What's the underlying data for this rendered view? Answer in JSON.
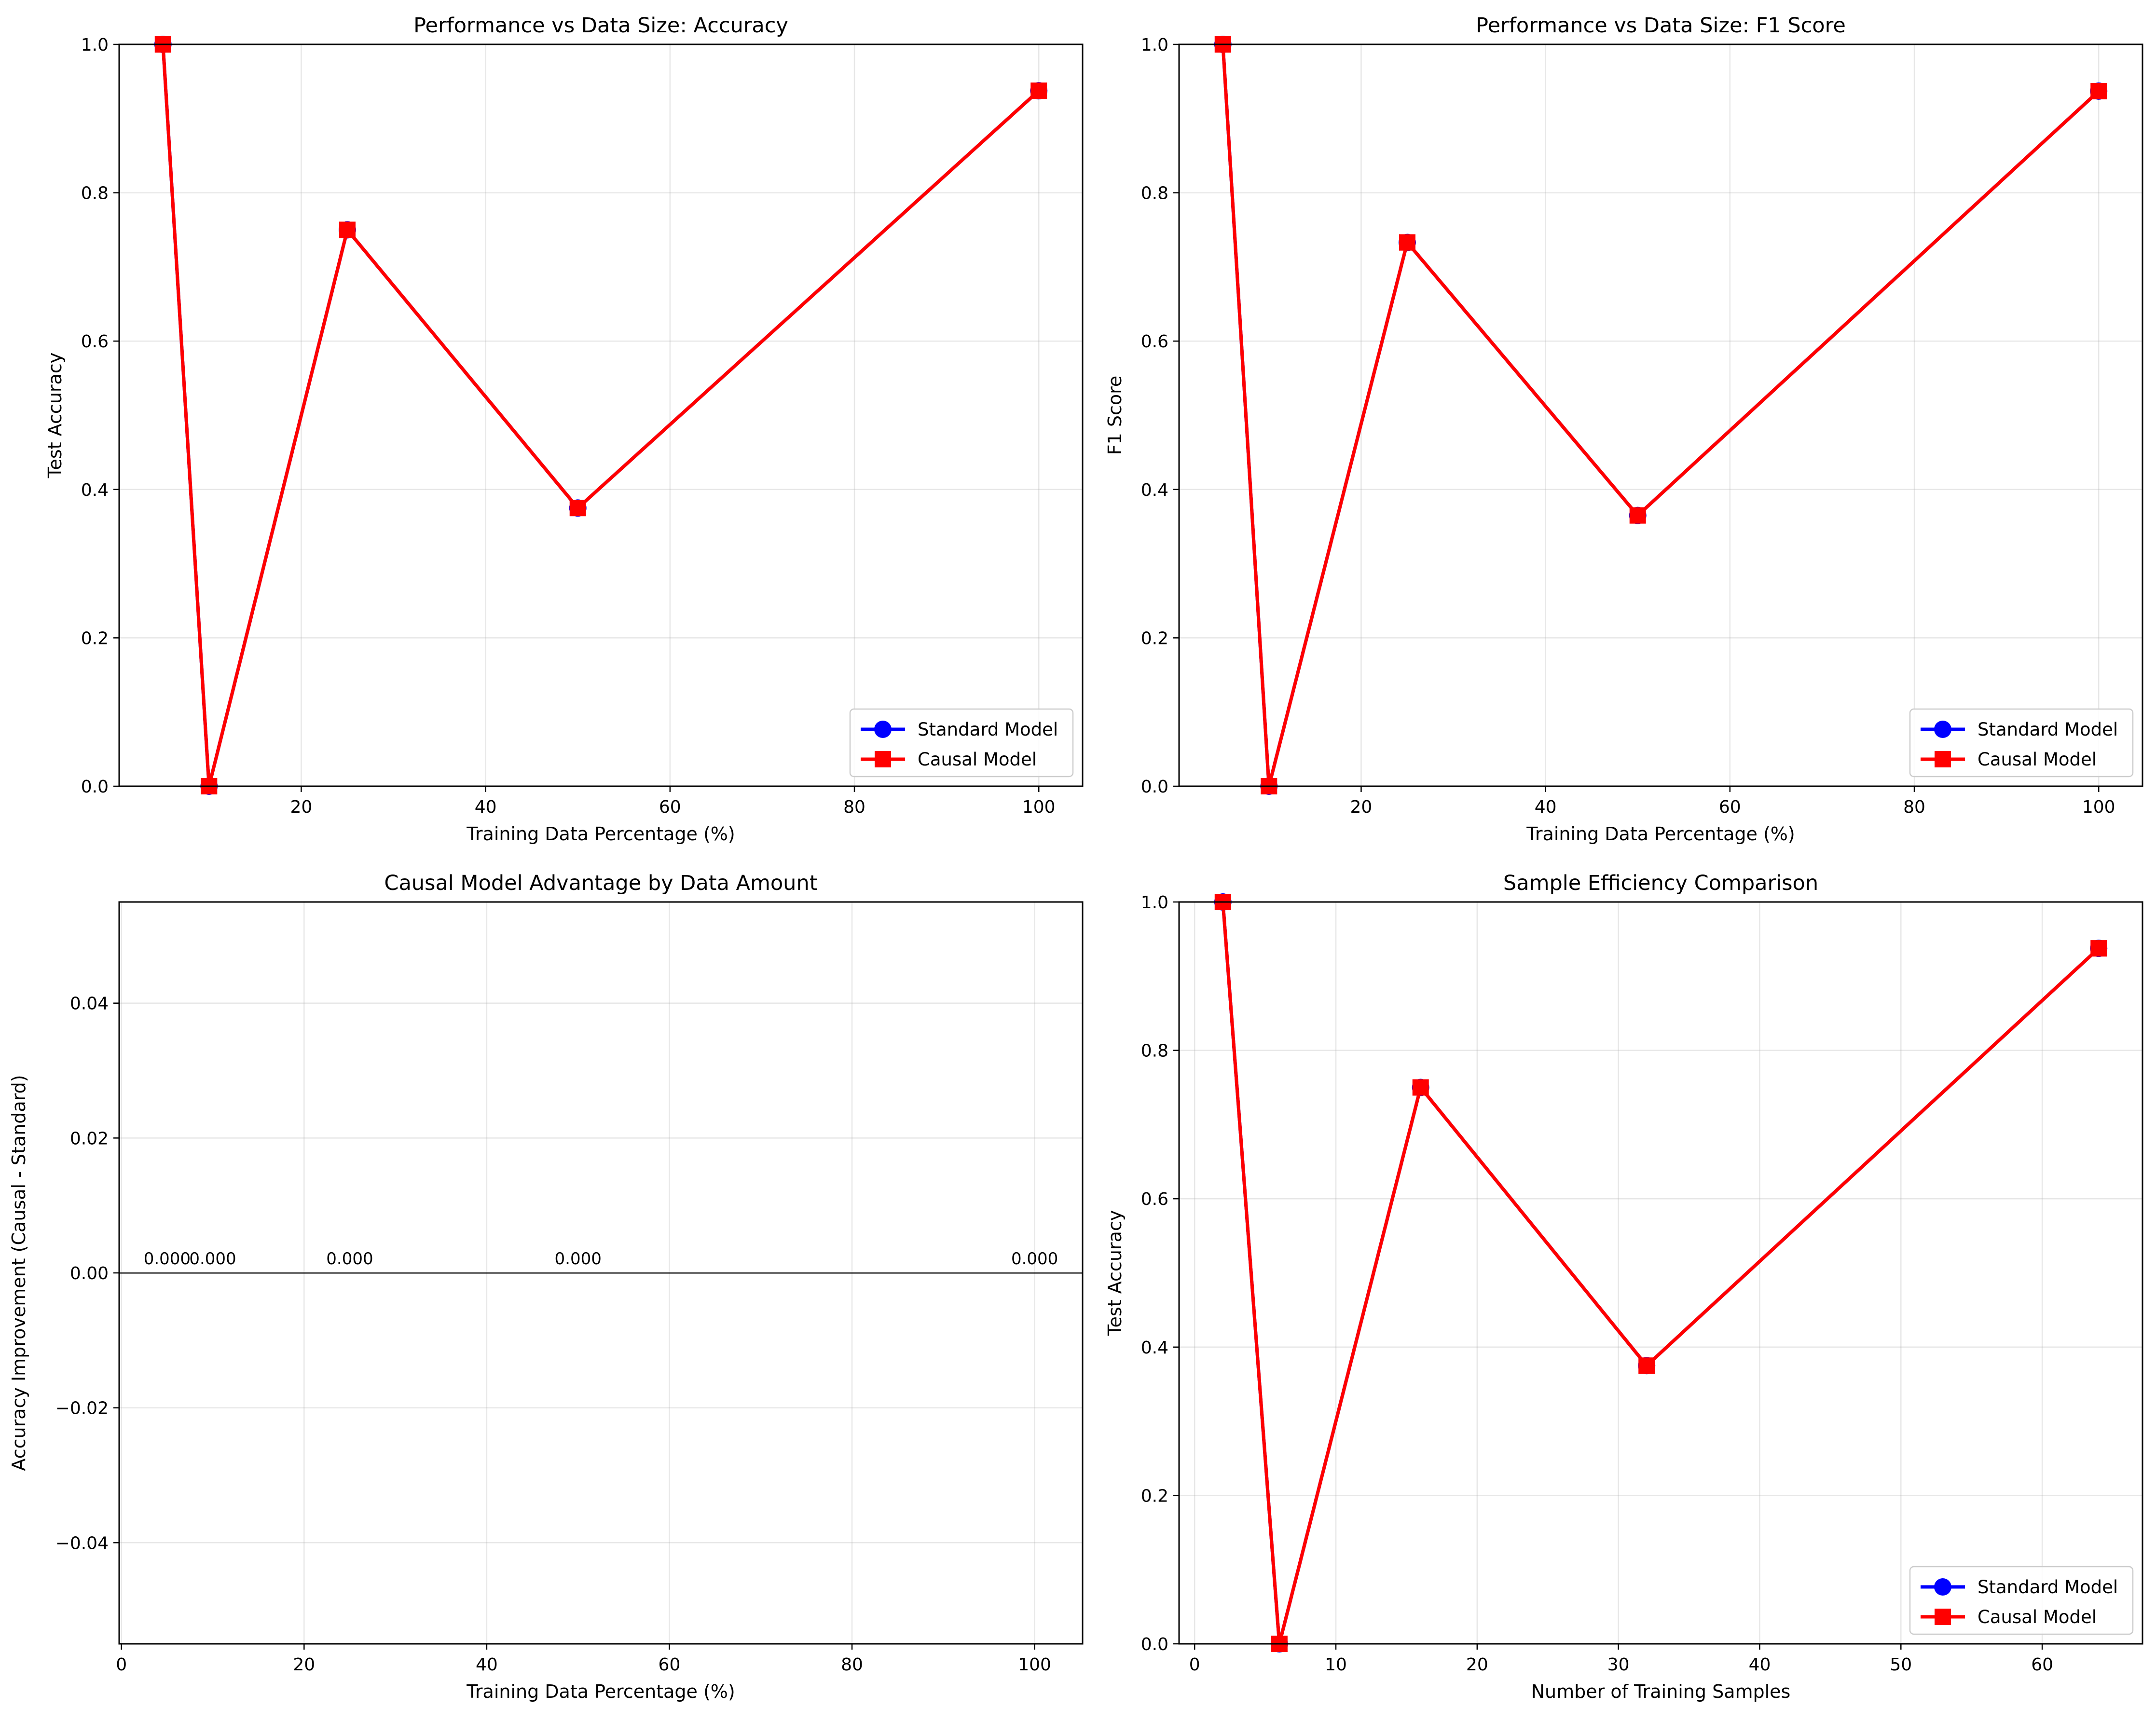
{
  "chart_data": [
    {
      "type": "line",
      "title": "Performance vs Data Size: Accuracy",
      "xlabel": "Training Data Percentage (%)",
      "ylabel": "Test Accuracy",
      "xlim": [
        0.25,
        104.75
      ],
      "ylim": [
        0,
        1
      ],
      "xticks": [
        20,
        40,
        60,
        80,
        100
      ],
      "yticks": [
        0,
        0.2,
        0.4,
        0.6,
        0.8,
        1
      ],
      "ytick_labels": [
        "0.0",
        "0.2",
        "0.4",
        "0.6",
        "0.8",
        "1.0"
      ],
      "grid": true,
      "legend": "lower-right",
      "series": [
        {
          "name": "Standard Model",
          "color": "#0000ff",
          "marker": "circle",
          "x": [
            5,
            10,
            25,
            50,
            100
          ],
          "values": [
            1.0,
            0.0,
            0.75,
            0.375,
            0.9375
          ]
        },
        {
          "name": "Causal Model",
          "color": "#ff0000",
          "marker": "square",
          "x": [
            5,
            10,
            25,
            50,
            100
          ],
          "values": [
            1.0,
            0.0,
            0.75,
            0.375,
            0.9375
          ]
        }
      ]
    },
    {
      "type": "line",
      "title": "Performance vs Data Size: F1 Score",
      "xlabel": "Training Data Percentage (%)",
      "ylabel": "F1 Score",
      "xlim": [
        0.25,
        104.75
      ],
      "ylim": [
        0,
        1
      ],
      "xticks": [
        20,
        40,
        60,
        80,
        100
      ],
      "yticks": [
        0,
        0.2,
        0.4,
        0.6,
        0.8,
        1
      ],
      "ytick_labels": [
        "0.0",
        "0.2",
        "0.4",
        "0.6",
        "0.8",
        "1.0"
      ],
      "grid": true,
      "legend": "lower-right",
      "series": [
        {
          "name": "Standard Model",
          "color": "#0000ff",
          "marker": "circle",
          "x": [
            5,
            10,
            25,
            50,
            100
          ],
          "values": [
            1.0,
            0.0,
            0.733,
            0.365,
            0.937
          ]
        },
        {
          "name": "Causal Model",
          "color": "#ff0000",
          "marker": "square",
          "x": [
            5,
            10,
            25,
            50,
            100
          ],
          "values": [
            1.0,
            0.0,
            0.733,
            0.365,
            0.937
          ]
        }
      ]
    },
    {
      "type": "bar",
      "title": "Causal Model Advantage by Data Amount",
      "xlabel": "Training Data Percentage (%)",
      "ylabel": "Accuracy Improvement (Causal - Standard)",
      "xlim": [
        -0.25,
        105.25
      ],
      "ylim": [
        -0.055,
        0.055
      ],
      "xticks": [
        0,
        20,
        40,
        60,
        80,
        100
      ],
      "yticks": [
        -0.04,
        -0.02,
        0,
        0.02,
        0.04
      ],
      "ytick_labels": [
        "−0.04",
        "−0.02",
        "0.00",
        "0.02",
        "0.04"
      ],
      "grid": true,
      "reference_line": 0,
      "x": [
        5,
        10,
        25,
        50,
        100
      ],
      "values": [
        0,
        0,
        0,
        0,
        0
      ],
      "data_labels": [
        "0.000",
        "0.000",
        "0.000",
        "0.000",
        "0.000"
      ]
    },
    {
      "type": "line",
      "title": "Sample Efficiency Comparison",
      "xlabel": "Number of Training Samples",
      "ylabel": "Test Accuracy",
      "xlim": [
        -1.1,
        67.1
      ],
      "ylim": [
        0,
        1
      ],
      "xticks": [
        0,
        10,
        20,
        30,
        40,
        50,
        60
      ],
      "yticks": [
        0,
        0.2,
        0.4,
        0.6,
        0.8,
        1
      ],
      "ytick_labels": [
        "0.0",
        "0.2",
        "0.4",
        "0.6",
        "0.8",
        "1.0"
      ],
      "grid": true,
      "legend": "lower-right",
      "series": [
        {
          "name": "Standard Model",
          "color": "#0000ff",
          "marker": "circle",
          "x": [
            2,
            6,
            16,
            32,
            64
          ],
          "values": [
            1.0,
            0.0,
            0.75,
            0.375,
            0.9375
          ]
        },
        {
          "name": "Causal Model",
          "color": "#ff0000",
          "marker": "square",
          "x": [
            2,
            6,
            16,
            32,
            64
          ],
          "values": [
            1.0,
            0.0,
            0.75,
            0.375,
            0.9375
          ]
        }
      ]
    }
  ]
}
